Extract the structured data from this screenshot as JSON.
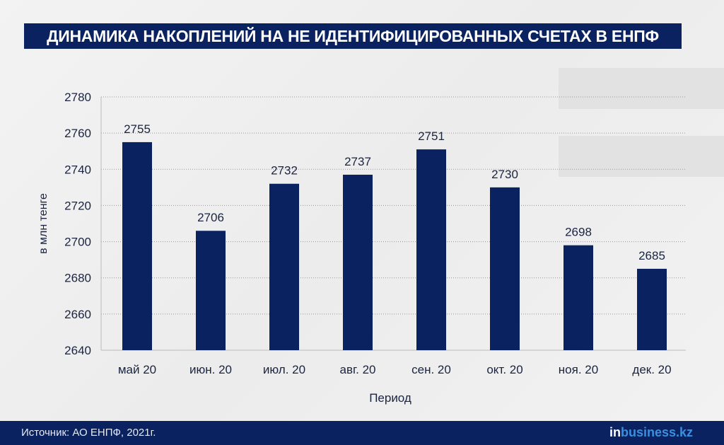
{
  "title": "ДИНАМИКА НАКОПЛЕНИЙ НА НЕ ИДЕНТИФИЦИРОВАННЫХ СЧЕТАХ В ЕНПФ",
  "footer": {
    "source": "Источник: АО ЕНПФ, 2021г.",
    "brand_in": "in",
    "brand_rest": "business.kz"
  },
  "colors": {
    "bar": "#0a2360",
    "banner": "#0a2360"
  },
  "chart_data": {
    "type": "bar",
    "title": "ДИНАМИКА НАКОПЛЕНИЙ НА НЕ ИДЕНТИФИЦИРОВАННЫХ СЧЕТАХ В ЕНПФ",
    "categories": [
      "май 20",
      "июн. 20",
      "июл. 20",
      "авг. 20",
      "сен. 20",
      "окт. 20",
      "ноя. 20",
      "дек. 20"
    ],
    "values": [
      2755,
      2706,
      2732,
      2737,
      2751,
      2730,
      2698,
      2685
    ],
    "xlabel": "Период",
    "ylabel": "в млн тенге",
    "ylim": [
      2640,
      2780
    ],
    "yticks": [
      2640,
      2660,
      2680,
      2700,
      2720,
      2740,
      2760,
      2780
    ],
    "grid": true
  }
}
